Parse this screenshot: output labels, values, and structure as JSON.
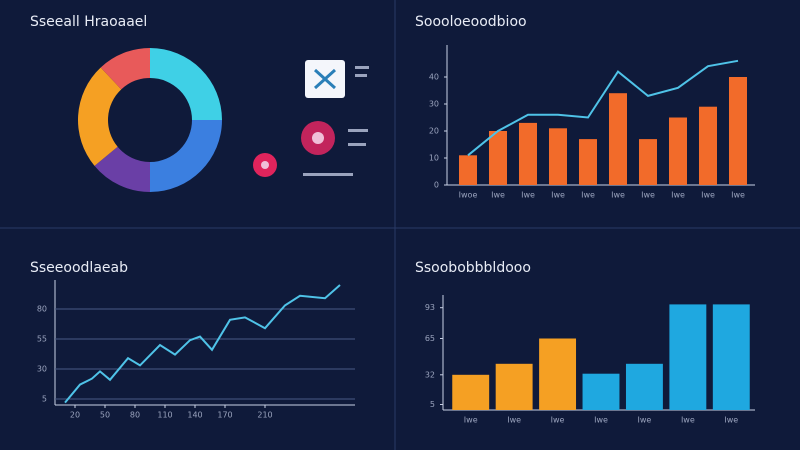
{
  "chart_data": [
    {
      "type": "pie",
      "title": "Sseeall Hraoaael",
      "values": [
        25,
        25,
        14,
        24,
        12
      ],
      "colors": [
        "#3fd0e6",
        "#3b7fe0",
        "#6a3fa6",
        "#f5a023",
        "#e85a5a"
      ]
    },
    {
      "type": "bar",
      "title": "Soooloeoodbioo",
      "categories": [
        "Iwoe",
        "Iwe",
        "Iwe",
        "Iwe",
        "Iwe",
        "Iwe",
        "Iwe",
        "Iwe",
        "Iwe",
        "Iwe"
      ],
      "series": [
        {
          "type": "bar",
          "color": "#f26b2a",
          "values": [
            11,
            20,
            23,
            21,
            17,
            34,
            17,
            25,
            29,
            40
          ]
        },
        {
          "type": "line",
          "color": "#4fc3e8",
          "values": [
            11,
            20,
            26,
            26,
            25,
            42,
            33,
            36,
            44,
            46
          ]
        }
      ],
      "ylim": [
        0,
        50
      ],
      "yticks": [
        0,
        10,
        20,
        30,
        40
      ]
    },
    {
      "type": "line",
      "title": "Sseeoodlaeab",
      "x": [
        10,
        25,
        37,
        45,
        55,
        73,
        85,
        105,
        120,
        135,
        145,
        157,
        175,
        190,
        210,
        230,
        245,
        270,
        285
      ],
      "values": [
        2,
        17,
        22,
        28,
        21,
        39,
        33,
        50,
        42,
        54,
        57,
        46,
        71,
        73,
        64,
        83,
        91,
        89,
        100
      ],
      "color": "#4fc3e8",
      "xlim": [
        0,
        300
      ],
      "ylim": [
        0,
        100
      ],
      "xticks": [
        20,
        50,
        80,
        110,
        140,
        170,
        210
      ],
      "yticks": [
        5,
        30,
        55,
        80
      ],
      "grid": true
    },
    {
      "type": "bar",
      "title": "Ssoobobbbldooo",
      "categories": [
        "Iwe",
        "Iwe",
        "Iwe",
        "Iwe",
        "Iwe",
        "Iwe",
        "Iwe"
      ],
      "values": [
        32,
        42,
        65,
        33,
        42,
        96,
        96
      ],
      "colors": [
        "#f5a023",
        "#f5a023",
        "#f5a023",
        "#1fa8e0",
        "#1fa8e0",
        "#1fa8e0",
        "#1fa8e0"
      ],
      "ylim": [
        0,
        100
      ],
      "yticks": [
        5,
        32,
        65,
        93
      ]
    }
  ]
}
